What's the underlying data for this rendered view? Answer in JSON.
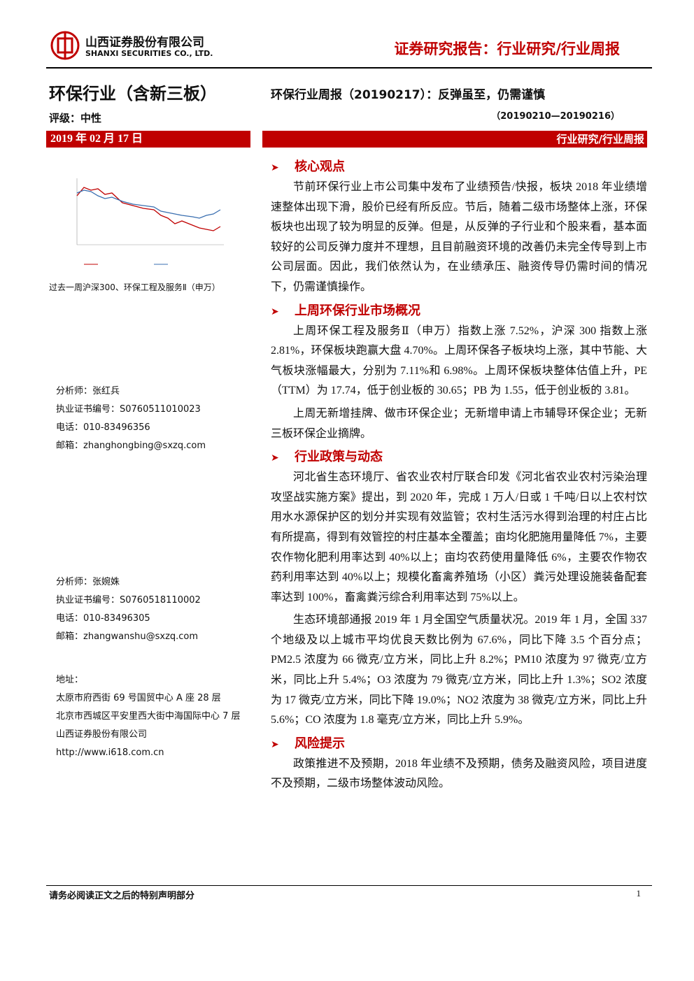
{
  "header": {
    "company_cn": "山西证券股份有限公司",
    "company_en": "SHANXI SECURITIES CO., LTD.",
    "report_type": "证券研究报告：行业研究/行业周报"
  },
  "sidebar": {
    "industry": "环保行业（含新三板）",
    "rating": "评级：中性",
    "date": "2019 年 02 月 17 日",
    "chart_caption": "过去一周沪深300、环保工程及服务Ⅱ（申万）",
    "analysts": [
      {
        "name": "分析师：张红兵",
        "cert": "执业证书编号：S0760511010023",
        "phone": "电话：010-83496356",
        "email": "邮箱：zhanghongbing@sxzq.com"
      },
      {
        "name": "分析师：张婉姝",
        "cert": "执业证书编号：S0760518110002",
        "phone": "电话：010-83496305",
        "email": "邮箱：zhangwanshu@sxzq.com"
      }
    ],
    "address": {
      "label": "地址：",
      "lines": [
        "太原市府西街 69 号国贸中心 A 座 28 层",
        "北京市西城区平安里西大街中海国际中心 7 层",
        "山西证券股份有限公司",
        "http://www.i618.com.cn"
      ]
    }
  },
  "main": {
    "title": "环保行业周报（20190217）：反弹虽至，仍需谨慎",
    "period": "（20190210—20190216）",
    "band": "行业研究/行业周报",
    "sections": [
      {
        "heading": "核心观点",
        "paragraphs": [
          "节前环保行业上市公司集中发布了业绩预告/快报，板块 2018 年业绩增速整体出现下滑，股价已经有所反应。节后，随着二级市场整体上涨，环保板块也出现了较为明显的反弹。但是，从反弹的子行业和个股来看，基本面较好的公司反弹力度并不理想，且目前融资环境的改善仍未完全传导到上市公司层面。因此，我们依然认为，在业绩承压、融资传导仍需时间的情况下，仍需谨慎操作。"
        ]
      },
      {
        "heading": "上周环保行业市场概况",
        "paragraphs": [
          "上周环保工程及服务Ⅱ（申万）指数上涨 7.52%，沪深 300 指数上涨 2.81%，环保板块跑赢大盘 4.70%。上周环保各子板块均上涨，其中节能、大气板块涨幅最大，分别为 7.11%和 6.98%。上周环保板块整体估值上升，PE（TTM）为 17.74，低于创业板的 30.65；PB 为 1.55，低于创业板的 3.81。",
          "上周无新增挂牌、做市环保企业；无新增申请上市辅导环保企业；无新三板环保企业摘牌。"
        ]
      },
      {
        "heading": "行业政策与动态",
        "paragraphs": [
          "河北省生态环境厅、省农业农村厅联合印发《河北省农业农村污染治理攻坚战实施方案》提出，到 2020 年，完成 1 万人/日或 1 千吨/日以上农村饮用水水源保护区的划分并实现有效监管；农村生活污水得到治理的村庄占比有所提高，得到有效管控的村庄基本全覆盖；亩均化肥施用量降低 7%，主要农作物化肥利用率达到 40%以上；亩均农药使用量降低 6%，主要农作物农药利用率达到 40%以上；规模化畜禽养殖场（小区）粪污处理设施装备配套率达到 100%，畜禽粪污综合利用率达到 75%以上。",
          "生态环境部通报 2019 年 1 月全国空气质量状况。2019 年 1 月，全国 337 个地级及以上城市平均优良天数比例为 67.6%，同比下降 3.5 个百分点；PM2.5 浓度为 66 微克/立方米，同比上升 8.2%；PM10 浓度为 97 微克/立方米，同比上升 5.4%；O3 浓度为 79 微克/立方米，同比上升 1.3%；SO2 浓度为 17 微克/立方米，同比下降 19.0%；NO2 浓度为 38 微克/立方米，同比上升 5.6%；CO 浓度为 1.8 毫克/立方米，同比上升 5.9%。"
        ]
      },
      {
        "heading": "风险提示",
        "paragraphs": [
          "政策推进不及预期，2018 年业绩不及预期，债务及融资风险，项目进度不及预期，二级市场整体波动风险。"
        ]
      }
    ]
  },
  "footer": {
    "disclaimer": "请务必阅读正文之后的特别声明部分",
    "page": "1"
  }
}
